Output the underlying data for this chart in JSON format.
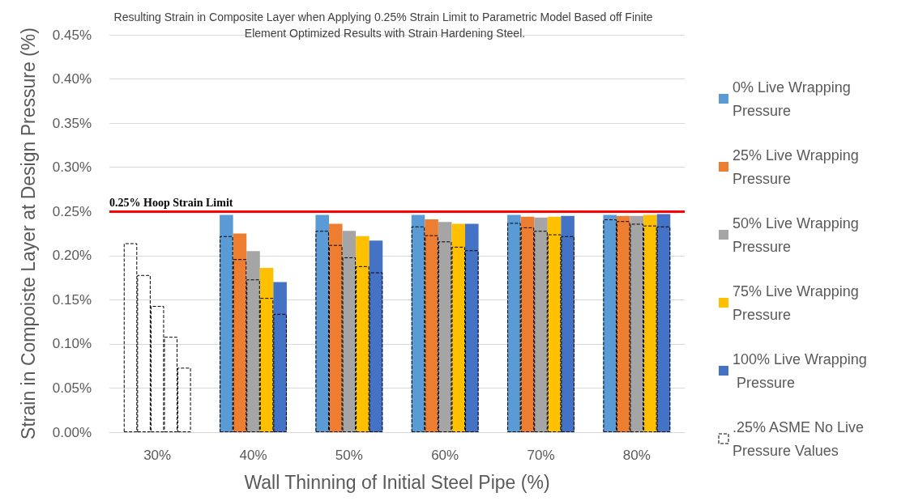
{
  "chart_data": {
    "type": "bar",
    "title": "Resulting Strain in Composite Layer when Applying 0.25% Strain Limit to Parametric Model Based off Finite Element Optimized Results with Strain Hardening Steel.",
    "xlabel": "Wall Thinning of Initial Steel Pipe (%)",
    "ylabel": "Strain in Compoiste Layer at Design Pressure (%)",
    "categories": [
      "30%",
      "40%",
      "50%",
      "60%",
      "70%",
      "80%"
    ],
    "series": [
      {
        "name": "0% Live Wrapping Pressure",
        "color": "#5b9bd5",
        "values": [
          null,
          0.246,
          0.246,
          0.246,
          0.246,
          0.246
        ]
      },
      {
        "name": "25% Live Wrapping Pressure",
        "color": "#ed7d31",
        "values": [
          null,
          0.225,
          0.236,
          0.241,
          0.244,
          0.245
        ]
      },
      {
        "name": "50% Live Wrapping Pressure",
        "color": "#a5a5a5",
        "values": [
          null,
          0.205,
          0.228,
          0.238,
          0.243,
          0.245
        ]
      },
      {
        "name": "75% Live Wrapping Pressure",
        "color": "#ffc000",
        "values": [
          null,
          0.186,
          0.222,
          0.236,
          0.244,
          0.246
        ]
      },
      {
        "name": "100% Live Wrapping Pressure",
        "color": "#4472c4",
        "values": [
          null,
          0.17,
          0.217,
          0.236,
          0.245,
          0.247
        ]
      },
      {
        "name": ".25% ASME No Live Pressure Values",
        "color": "#000000",
        "line_style": "dashed",
        "values": [
          0.214,
          0.222,
          0.228,
          0.233,
          0.237,
          0.241
        ]
      },
      {
        "color": "#000000",
        "line_style": "dashed",
        "values": [
          0.178,
          0.196,
          0.212,
          0.223,
          0.232,
          0.239
        ]
      },
      {
        "color": "#000000",
        "line_style": "dashed",
        "values": [
          0.143,
          0.173,
          0.198,
          0.216,
          0.228,
          0.236
        ]
      },
      {
        "color": "#000000",
        "line_style": "dashed",
        "values": [
          0.108,
          0.152,
          0.188,
          0.21,
          0.224,
          0.234
        ]
      },
      {
        "color": "#000000",
        "line_style": "dashed",
        "values": [
          0.073,
          0.134,
          0.181,
          0.206,
          0.222,
          0.233
        ]
      }
    ],
    "ylim": [
      0,
      0.45
    ],
    "yticks": [
      {
        "value": 0,
        "label": "0.00%"
      },
      {
        "value": 0.05,
        "label": "0.05%"
      },
      {
        "value": 0.1,
        "label": "0.10%"
      },
      {
        "value": 0.15,
        "label": "0.15%"
      },
      {
        "value": 0.2,
        "label": "0.20%"
      },
      {
        "value": 0.25,
        "label": "0.25%"
      },
      {
        "value": 0.3,
        "label": "0.30%"
      },
      {
        "value": 0.35,
        "label": "0.35%"
      },
      {
        "value": 0.4,
        "label": "0.40%"
      },
      {
        "value": 0.45,
        "label": "0.45%"
      }
    ],
    "ref_lines": [
      {
        "axis": "y",
        "value": 0.25,
        "label": "0.25% Hoop Strain Limit",
        "color": "#ff0000"
      }
    ],
    "grid": "y",
    "legend": "right"
  }
}
